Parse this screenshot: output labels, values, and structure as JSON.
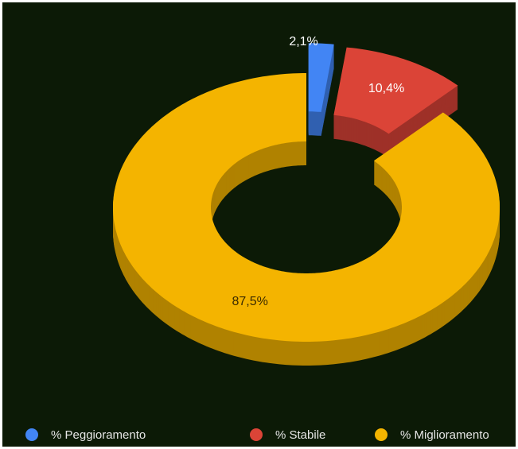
{
  "chart_data": {
    "type": "donut3d",
    "categories": [
      "% Peggioramento",
      "% Stabile",
      "% Miglioramento"
    ],
    "values": [
      2.1,
      10.4,
      87.5
    ],
    "value_labels": [
      "2,1%",
      "10,4%",
      "87,5%"
    ],
    "colors": [
      "#4285f4",
      "#db4437",
      "#f4b400"
    ],
    "exploded": [
      true,
      true,
      false
    ],
    "legend": "bottom"
  }
}
